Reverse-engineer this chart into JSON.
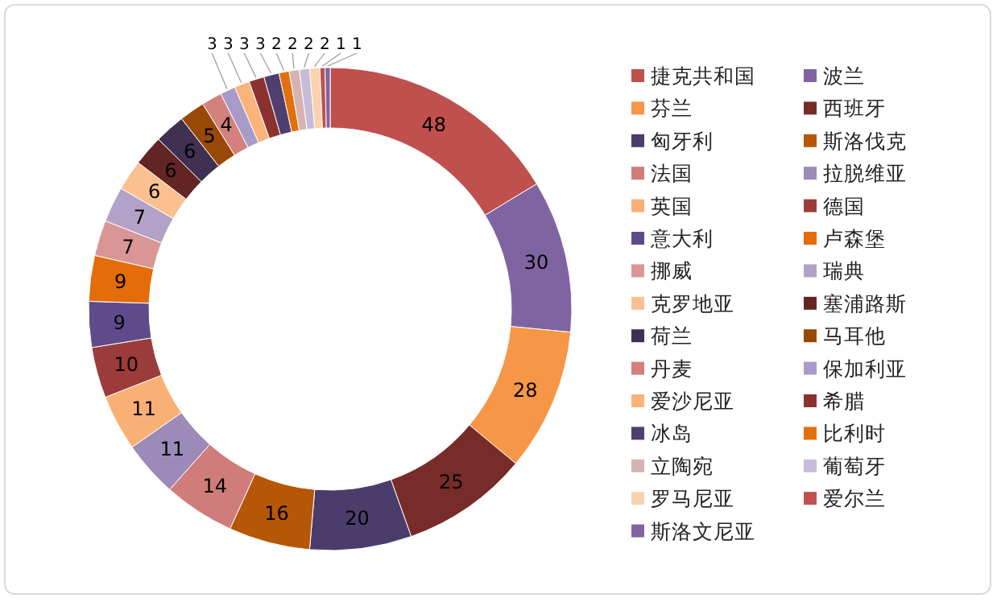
{
  "chart_data": {
    "type": "donut",
    "categories": [
      "捷克共和国",
      "波兰",
      "芬兰",
      "西班牙",
      "匈牙利",
      "斯洛伐克",
      "法国",
      "拉脱维亚",
      "英国",
      "德国",
      "意大利",
      "卢森堡",
      "挪威",
      "瑞典",
      "克罗地亚",
      "塞浦路斯",
      "荷兰",
      "马耳他",
      "丹麦",
      "保加利亚",
      "爱沙尼亚",
      "希腊",
      "冰岛",
      "比利时",
      "立陶宛",
      "葡萄牙",
      "罗马尼亚",
      "爱尔兰",
      "斯洛文尼亚"
    ],
    "values": [
      48,
      30,
      28,
      25,
      20,
      16,
      14,
      11,
      11,
      10,
      9,
      9,
      7,
      7,
      6,
      6,
      6,
      5,
      4,
      3,
      3,
      3,
      3,
      2,
      2,
      2,
      2,
      1,
      1
    ],
    "colors": [
      "#c0504d",
      "#8064a2",
      "#f79646",
      "#772c2a",
      "#4b3d6b",
      "#b65708",
      "#d07c7a",
      "#9c8ab8",
      "#f9b074",
      "#9c3c3a",
      "#5f4b8b",
      "#e46c0a",
      "#d99694",
      "#b3a2c7",
      "#fac090",
      "#632523",
      "#403152",
      "#984807",
      "#d4807d",
      "#a99bc8",
      "#fab37a",
      "#8b3230",
      "#4f3f6e",
      "#e3700e",
      "#d6b3b2",
      "#c7bcd8",
      "#fbd2b0",
      "#c0504d",
      "#8064a2"
    ],
    "data_labels": true,
    "legend": "right"
  }
}
